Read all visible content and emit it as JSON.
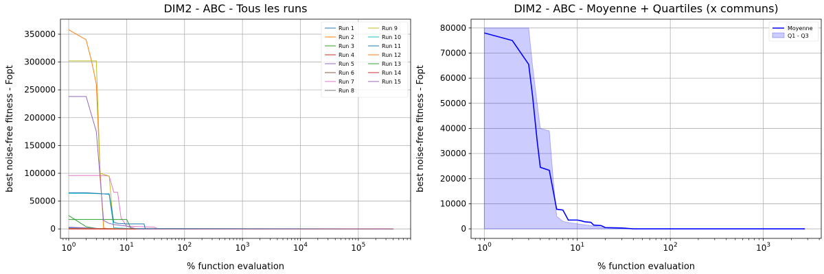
{
  "chart_data": [
    {
      "type": "line",
      "title": "DIM2 - ABC  - Tous les runs",
      "xlabel": "% function evaluation",
      "ylabel": "best noise-free fitness - Fopt",
      "xscale": "log",
      "xlim": [
        0.72,
        800000
      ],
      "ylim": [
        -17000,
        377000
      ],
      "xticks": [
        {
          "value": 1,
          "base": "10",
          "exp": "0"
        },
        {
          "value": 10,
          "base": "10",
          "exp": "1"
        },
        {
          "value": 100,
          "base": "10",
          "exp": "2"
        },
        {
          "value": 1000,
          "base": "10",
          "exp": "3"
        },
        {
          "value": 10000,
          "base": "10",
          "exp": "4"
        },
        {
          "value": 100000,
          "base": "10",
          "exp": "5"
        }
      ],
      "yticks": [
        0,
        50000,
        100000,
        150000,
        200000,
        250000,
        300000,
        350000
      ],
      "grid": true,
      "legend_position": "top-right",
      "series": [
        {
          "name": "Run 1",
          "color": "#1f77b4",
          "x": [
            1,
            2,
            3,
            4,
            5,
            6,
            10,
            18,
            20,
            400000
          ],
          "y": [
            2000,
            1500,
            800,
            500,
            400,
            300,
            200,
            100,
            0,
            0
          ]
        },
        {
          "name": "Run 2",
          "color": "#ff7f0e",
          "x": [
            1,
            2,
            2.5,
            3,
            3.5,
            4,
            5,
            400000
          ],
          "y": [
            358000,
            340000,
            300000,
            260000,
            100000,
            2000,
            0,
            0
          ]
        },
        {
          "name": "Run 3",
          "color": "#2ca02c",
          "x": [
            1,
            2,
            3,
            5,
            8,
            10,
            400000
          ],
          "y": [
            24000,
            4000,
            1000,
            500,
            200,
            0,
            0
          ]
        },
        {
          "name": "Run 4",
          "color": "#d62728",
          "x": [
            1,
            2,
            4,
            6,
            10,
            400000
          ],
          "y": [
            300,
            200,
            100,
            50,
            0,
            0
          ]
        },
        {
          "name": "Run 5",
          "color": "#9467bd",
          "x": [
            1,
            2,
            3,
            4,
            5,
            400000
          ],
          "y": [
            3000,
            2000,
            1000,
            500,
            0,
            0
          ]
        },
        {
          "name": "Run 6",
          "color": "#8c564b",
          "x": [
            1,
            2,
            4,
            400000
          ],
          "y": [
            500,
            300,
            100,
            0
          ]
        },
        {
          "name": "Run 7",
          "color": "#e377c2",
          "x": [
            1,
            2,
            3,
            4,
            5,
            6,
            7,
            8,
            10,
            20,
            30,
            35,
            400000
          ],
          "y": [
            96000,
            96000,
            96000,
            96000,
            95000,
            66000,
            66000,
            20000,
            5000,
            4000,
            3000,
            0,
            0
          ]
        },
        {
          "name": "Run 8",
          "color": "#7f7f7f",
          "x": [
            1,
            3,
            5,
            10,
            3000,
            400000
          ],
          "y": [
            1000,
            800,
            500,
            200,
            100,
            0
          ]
        },
        {
          "name": "Run 9",
          "color": "#bcbd22",
          "x": [
            1,
            2,
            3,
            3.5,
            5,
            6,
            10,
            400000
          ],
          "y": [
            302000,
            302000,
            302000,
            100000,
            95000,
            2000,
            0,
            0
          ]
        },
        {
          "name": "Run 10",
          "color": "#17becf",
          "x": [
            1,
            2,
            3,
            4,
            5,
            6,
            10,
            400000
          ],
          "y": [
            64000,
            64000,
            63500,
            63000,
            62000,
            2000,
            1000,
            0
          ]
        },
        {
          "name": "Run 11",
          "color": "#1f77b4",
          "x": [
            1,
            2,
            3,
            4,
            5,
            6,
            7,
            10,
            15,
            20,
            21,
            400000
          ],
          "y": [
            65000,
            65000,
            64000,
            63000,
            63000,
            12000,
            10000,
            9000,
            9000,
            9000,
            0,
            0
          ]
        },
        {
          "name": "Run 12",
          "color": "#ff7f0e",
          "x": [
            1,
            2,
            3,
            5,
            10,
            12,
            14,
            400000
          ],
          "y": [
            200,
            150,
            100,
            80,
            60,
            40,
            0,
            0
          ]
        },
        {
          "name": "Run 13",
          "color": "#2ca02c",
          "x": [
            1,
            2,
            3,
            4,
            6,
            10,
            12,
            400000
          ],
          "y": [
            17000,
            17000,
            17000,
            17000,
            17000,
            17000,
            0,
            0
          ]
        },
        {
          "name": "Run 14",
          "color": "#d62728",
          "x": [
            1,
            2,
            5,
            400000
          ],
          "y": [
            0,
            0,
            0,
            0
          ]
        },
        {
          "name": "Run 15",
          "color": "#9467bd",
          "x": [
            1,
            2,
            3,
            4,
            5,
            6,
            10,
            15,
            400000
          ],
          "y": [
            238000,
            238000,
            175000,
            15000,
            10000,
            8000,
            5000,
            0,
            0
          ]
        }
      ]
    },
    {
      "type": "line",
      "title": "DIM2 - ABC - Moyenne + Quartiles (x communs)",
      "xlabel": "% function evaluation",
      "ylabel": "best noise-free fitness - Fopt",
      "xscale": "log",
      "xlim": [
        0.72,
        4200
      ],
      "ylim": [
        -3800,
        83500
      ],
      "xticks": [
        {
          "value": 1,
          "base": "10",
          "exp": "0"
        },
        {
          "value": 10,
          "base": "10",
          "exp": "1"
        },
        {
          "value": 100,
          "base": "10",
          "exp": "2"
        },
        {
          "value": 1000,
          "base": "10",
          "exp": "3"
        }
      ],
      "yticks": [
        0,
        10000,
        20000,
        30000,
        40000,
        50000,
        60000,
        70000,
        80000
      ],
      "grid": true,
      "legend_position": "top-right",
      "series": [
        {
          "name": "Moyenne",
          "color": "#0000ff",
          "x": [
            1,
            2,
            3,
            3.3,
            3.7,
            4,
            5,
            6,
            7,
            8,
            10,
            11,
            12,
            14,
            15,
            18,
            20,
            25,
            30,
            40,
            100,
            1000,
            2800
          ],
          "y": [
            78000,
            75000,
            65500,
            53000,
            35000,
            24500,
            23300,
            7800,
            7500,
            3500,
            3500,
            3200,
            2800,
            2600,
            1500,
            1300,
            500,
            400,
            350,
            0,
            0,
            0,
            0
          ]
        }
      ],
      "band": {
        "name": "Q1 - Q3",
        "color": "#0000ff",
        "x": [
          1,
          2,
          3,
          3.3,
          3.7,
          4,
          5,
          5.5,
          6,
          7,
          8,
          10,
          20,
          40,
          100,
          1000,
          2800
        ],
        "lower": [
          0,
          0,
          0,
          0,
          0,
          0,
          0,
          0,
          0,
          0,
          0,
          0,
          0,
          0,
          0,
          0,
          0
        ],
        "upper": [
          80000,
          80000,
          80000,
          65000,
          50000,
          40000,
          39000,
          20000,
          5000,
          3000,
          2500,
          2000,
          500,
          0,
          0,
          0,
          0
        ]
      }
    }
  ]
}
